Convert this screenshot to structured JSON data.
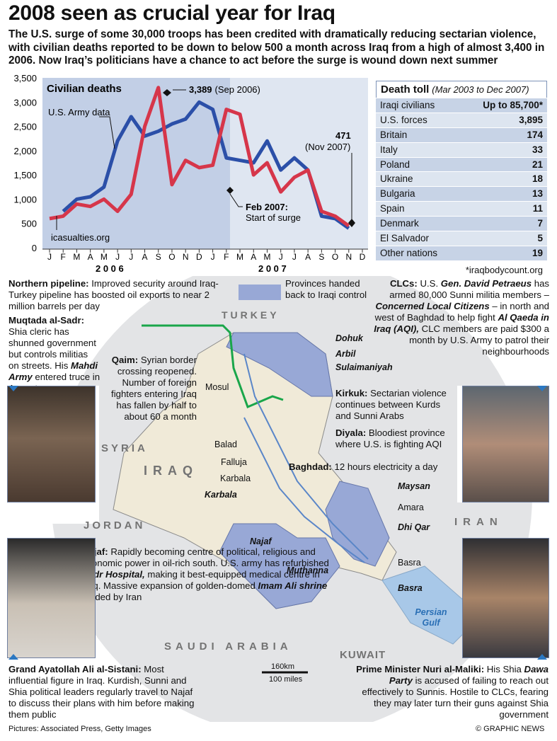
{
  "headline": "2008 seen as crucial year for Iraq",
  "intro": "The U.S. surge of some 30,000 troops has been credited with dramatically reducing sectarian violence, with civilian deaths reported to be down to below 500 a month across Iraq from a high of almost 3,400 in 2006. Now Iraq’s politicians have a chance to act before the surge is wound down next summer",
  "chart_data": {
    "type": "line",
    "title": "Civilian deaths",
    "x": [
      "J",
      "F",
      "M",
      "A",
      "M",
      "J",
      "J",
      "A",
      "S",
      "O",
      "N",
      "D",
      "J",
      "F",
      "M",
      "A",
      "M",
      "J",
      "J",
      "A",
      "S",
      "O",
      "N",
      "D"
    ],
    "year_labels": [
      "2 0 0 6",
      "2 0 0 7"
    ],
    "yticks": [
      "3,500",
      "3,000",
      "2,500",
      "2,000",
      "1,500",
      "1,000",
      "500",
      "0"
    ],
    "ylim": [
      0,
      3500
    ],
    "series": [
      {
        "name": "U.S. Army data",
        "color": "#2b4fa8",
        "values": [
          null,
          750,
          1000,
          1050,
          1250,
          2200,
          2700,
          2300,
          2400,
          2550,
          2650,
          3000,
          2850,
          1850,
          1800,
          1750,
          2200,
          1600,
          1850,
          1600,
          650,
          600,
          400,
          null
        ]
      },
      {
        "name": "icasualties.org",
        "color": "#d6364a",
        "values": [
          600,
          650,
          900,
          850,
          1000,
          750,
          1100,
          2500,
          3300,
          1300,
          1800,
          1650,
          1700,
          2850,
          2750,
          1500,
          1750,
          1150,
          1450,
          1600,
          750,
          650,
          450,
          null
        ]
      }
    ],
    "annotations": {
      "peak_value": "3,389",
      "peak_date": "(Sep 2006)",
      "latest_value": "471",
      "latest_date": "(Nov 2007)",
      "surge_title": "Feb 2007:",
      "surge_text": "Start of surge",
      "army_label": "U.S. Army data",
      "ica_label": "icasualties.org"
    }
  },
  "death_toll": {
    "title": "Death toll",
    "period": "(Mar 2003 to Dec 2007)",
    "rows": [
      {
        "label": "Iraqi civilians",
        "value": "Up to 85,700*"
      },
      {
        "label": "U.S. forces",
        "value": "3,895"
      },
      {
        "label": "Britain",
        "value": "174"
      },
      {
        "label": "Italy",
        "value": "33"
      },
      {
        "label": "Poland",
        "value": "21"
      },
      {
        "label": "Ukraine",
        "value": "18"
      },
      {
        "label": "Bulgaria",
        "value": "13"
      },
      {
        "label": "Spain",
        "value": "11"
      },
      {
        "label": "Denmark",
        "value": "7"
      },
      {
        "label": "El Salvador",
        "value": "5"
      },
      {
        "label": "Other nations",
        "value": "19"
      }
    ],
    "source": "*iraqbodycount.org"
  },
  "legend": {
    "provinces": "Provinces handed back to Iraqi control"
  },
  "notes": {
    "pipeline_head": "Northern pipeline:",
    "pipeline_text": "Improved security around Iraq-Turkey pipeline has boosted oil exports to near 2 million barrels per day",
    "sadr_head": "Muqtada al-Sadr:",
    "sadr_text1": "Shia cleric has shunned government but controls militias on streets. His",
    "sadr_army": "Mahdi Army",
    "sadr_text2": "entered truce in August",
    "clc_head": "CLCs:",
    "clc_t1": "U.S.",
    "clc_gen": "Gen. David Petraeus",
    "clc_t2": "has armed 80,000 Sunni militia members –",
    "clc_name": "Concerned Local Citizens",
    "clc_t3": "– in north and west of Baghdad to help fight",
    "clc_aqi": "Al Qaeda in Iraq (AQI),",
    "clc_t4": "CLC members are paid $300 a month by U.S. Army to patrol their neighbourhoods",
    "qaim_head": "Qaim:",
    "qaim_text": "Syrian border crossing reopened. Number of foreign fighters entering Iraq has fallen by half to about 60 a month",
    "kirkuk_head": "Kirkuk:",
    "kirkuk_text": "Sectarian violence continues between Kurds and Sunni Arabs",
    "diyala_head": "Diyala:",
    "diyala_text": "Bloodiest province where U.S. is fighting AQI",
    "baghdad_head": "Baghdad:",
    "baghdad_text": "12 hours electricity a day",
    "najaf_head": "Najaf:",
    "najaf_t1": "Rapidly becoming centre of political, religious and economic power in oil-rich south. U.S. army has refurbished",
    "najaf_hosp": "Sadr Hospital,",
    "najaf_t2": "making it best-equipped medical centre in Iraq. Massive expansion of golden-domed",
    "najaf_shrine": "Imam Ali shrine",
    "najaf_t3": "funded by Iran",
    "sistani_head": "Grand Ayatollah Ali al-Sistani:",
    "sistani_text": "Most influential figure in Iraq. Kurdish, Sunni and Shia political leaders regularly travel to Najaf to discuss their plans with him before making them public",
    "maliki_head": "Prime Minister Nuri al-Maliki:",
    "maliki_t1": "His Shia",
    "maliki_party": "Dawa Party",
    "maliki_t2": "is accused of failing to reach out effectively to Sunnis. Hostile to CLCs, fearing they may later turn their guns against Shia government"
  },
  "map": {
    "countries": {
      "turkey": "TURKEY",
      "syria": "SYRIA",
      "iraq": "IRAQ",
      "jordan": "JORDAN",
      "iran": "IRAN",
      "saudi": "SAUDI ARABIA",
      "kuwait": "KUWAIT"
    },
    "provinces": {
      "dohuk": "Dohuk",
      "arbil": "Arbil",
      "sulaimaniyah": "Sulaimaniyah",
      "karbala": "Karbala",
      "maysan": "Maysan",
      "dhiqar": "Dhi Qar",
      "najaf": "Najaf",
      "muthanna": "Muthanna",
      "basra": "Basra"
    },
    "cities": {
      "mosul": "Mosul",
      "balad": "Balad",
      "falluja": "Falluja",
      "karbala": "Karbala",
      "amara": "Amara",
      "basra": "Basra"
    },
    "gulf": "Persian Gulf",
    "scale_km": "160km",
    "scale_mi": "100 miles"
  },
  "footer": {
    "left": "Pictures: Associated Press, Getty Images",
    "right": "© GRAPHIC NEWS"
  }
}
